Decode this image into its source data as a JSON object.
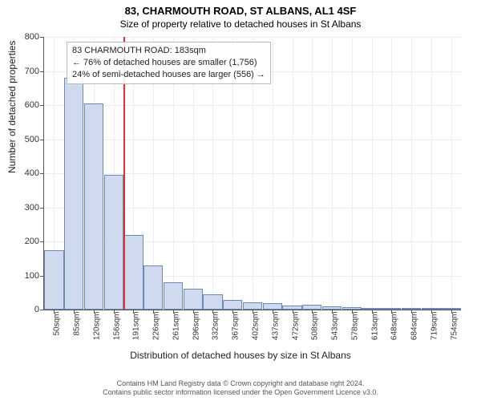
{
  "chart": {
    "type": "histogram",
    "title_main": "83, CHARMOUTH ROAD, ST ALBANS, AL1 4SF",
    "title_sub": "Size of property relative to detached houses in St Albans",
    "ylabel": "Number of detached properties",
    "xlabel": "Distribution of detached houses by size in St Albans",
    "ylim_max": 800,
    "ytick_step": 100,
    "yticks": [
      0,
      100,
      200,
      300,
      400,
      500,
      600,
      700,
      800
    ],
    "x_categories": [
      "50sqm",
      "85sqm",
      "120sqm",
      "156sqm",
      "191sqm",
      "226sqm",
      "261sqm",
      "296sqm",
      "332sqm",
      "367sqm",
      "402sqm",
      "437sqm",
      "472sqm",
      "508sqm",
      "543sqm",
      "578sqm",
      "613sqm",
      "648sqm",
      "684sqm",
      "719sqm",
      "754sqm"
    ],
    "bar_values": [
      175,
      680,
      605,
      395,
      218,
      130,
      80,
      62,
      45,
      28,
      22,
      18,
      12,
      15,
      10,
      8,
      4,
      3,
      5,
      2,
      3
    ],
    "bar_fill": "#cfdaef",
    "bar_stroke": "#6b88b8",
    "grid_color": "#ededed",
    "background": "#ffffff",
    "marker_index": 4,
    "marker_color": "#e03030",
    "annotation": {
      "line1": "83 CHARMOUTH ROAD: 183sqm",
      "line2": "← 76% of detached houses are smaller (1,756)",
      "line3": "24% of semi-detached houses are larger (556) →"
    },
    "footer_line1": "Contains HM Land Registry data © Crown copyright and database right 2024.",
    "footer_line2": "Contains public sector information licensed under the Open Government Licence v3.0."
  }
}
